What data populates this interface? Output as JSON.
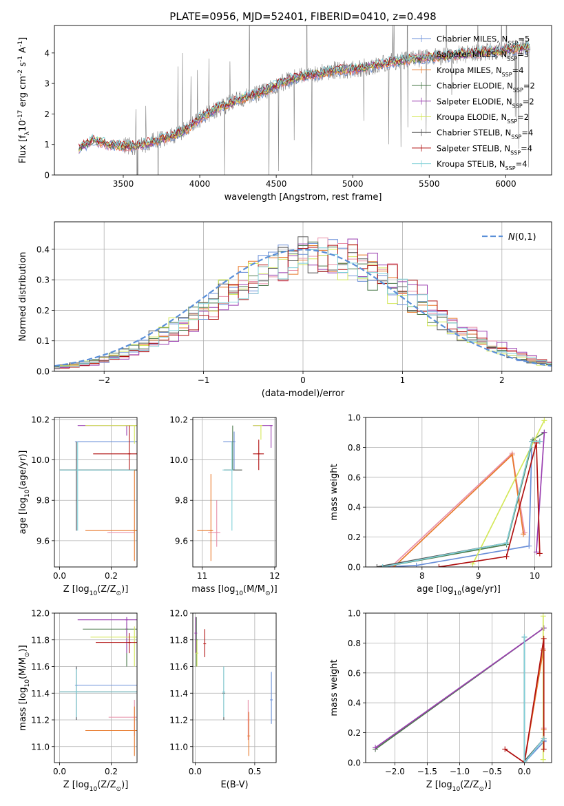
{
  "figure": {
    "title": "PLATE=0956, MJD=52401, FIBERID=0410, z=0.498"
  },
  "series_styles": [
    {
      "label": "Chabrier MILES, N$_{SSP}$=5",
      "color": "#6a8fd8"
    },
    {
      "label": "Salpeter MILES, N$_{SSP}$=3",
      "color": "#e88fa8"
    },
    {
      "label": "Kroupa MILES, N$_{SSP}$=4",
      "color": "#e8792a"
    },
    {
      "label": "Chabrier ELODIE, N$_{SSP}$=2",
      "color": "#4c7a4c"
    },
    {
      "label": "Salpeter ELODIE, N$_{SSP}$=2",
      "color": "#9a3fb0"
    },
    {
      "label": "Kroupa ELODIE, N$_{SSP}$=2",
      "color": "#d4e85a"
    },
    {
      "label": "Chabrier STELIB, N$_{SSP}$=4",
      "color": "#555555"
    },
    {
      "label": "Salpeter STELIB, N$_{SSP}$=4",
      "color": "#b01010"
    },
    {
      "label": "Kroupa STELIB, N$_{SSP}$=4",
      "color": "#80d0d8"
    }
  ],
  "chart_data": [
    {
      "id": "spectrum",
      "type": "line",
      "title": "PLATE=0956, MJD=52401, FIBERID=0410, z=0.498",
      "xlabel": "wavelength [Angstrom, rest frame]",
      "ylabel": "Flux [f$_\\lambda$10$^{-17}$ erg cm$^{-2}$ s$^{-1}$ A$^{-1}$]",
      "xlim": [
        3050,
        6300
      ],
      "ylim": [
        0,
        4.9
      ],
      "xticks": [
        3500,
        4000,
        4500,
        5000,
        5500,
        6000
      ],
      "yticks": [
        0,
        1,
        2,
        3,
        4
      ],
      "grid": false,
      "legend": "top-right",
      "data_color": "#7f7f7f",
      "data_range": [
        3210,
        6160
      ],
      "continuum": {
        "x": [
          3210,
          3300,
          3400,
          3500,
          3600,
          3700,
          3800,
          3900,
          4000,
          4100,
          4200,
          4300,
          4400,
          4500,
          4600,
          4700,
          4800,
          4900,
          5000,
          5100,
          5200,
          5300,
          5400,
          5500,
          5600,
          5700,
          5800,
          5900,
          6000,
          6100,
          6160
        ],
        "y": [
          0.85,
          1.15,
          1.0,
          0.95,
          0.95,
          1.1,
          1.25,
          1.45,
          1.85,
          2.15,
          2.35,
          2.55,
          2.7,
          2.95,
          3.15,
          3.25,
          3.35,
          3.45,
          3.45,
          3.55,
          3.65,
          3.75,
          3.8,
          3.85,
          3.9,
          3.95,
          4.0,
          4.05,
          4.1,
          4.15,
          4.2
        ]
      }
    },
    {
      "id": "residuals",
      "type": "line",
      "xlabel": "(data-model)/error",
      "ylabel": "Normed distribution",
      "xlim": [
        -2.5,
        2.5
      ],
      "ylim": [
        0,
        0.49
      ],
      "xticks": [
        -2,
        -1,
        0,
        1,
        2
      ],
      "yticks": [
        0.0,
        0.1,
        0.2,
        0.3,
        0.4
      ],
      "grid": true,
      "legend": "top-right",
      "legend_entry": "$\\mathcal{N}(0,1)$",
      "gaussian": {
        "mu": 0,
        "sigma": 1,
        "color": "#5a8fd8"
      },
      "bin_width": 0.1
    },
    {
      "id": "age-vs-z",
      "type": "scatter",
      "xlabel": "Z [log$_{10}$(Z/Z$_\\odot$)]",
      "ylabel": "age  [log$_{10}$(age/yr)]",
      "xlim": [
        -0.02,
        0.3
      ],
      "ylim": [
        9.47,
        10.21
      ],
      "xticks": [
        0.0,
        0.2
      ],
      "yticks": [
        9.6,
        9.8,
        10.0,
        10.2
      ],
      "grid": true,
      "points": [
        {
          "s": 0,
          "x": 0.065,
          "y": 9.95,
          "xlo": 0.0,
          "xhi": 0.29,
          "ylo": 9.65,
          "yhi": 10.09
        },
        {
          "s": 0,
          "x": 0.065,
          "y": 10.09,
          "xlo": 0.07,
          "xhi": 0.3,
          "ylo": 10.09,
          "yhi": 10.09
        },
        {
          "s": 1,
          "x": 0.19,
          "y": 9.64,
          "xlo": 0.19,
          "xhi": 0.29,
          "ylo": 9.64,
          "yhi": 9.64
        },
        {
          "s": 2,
          "x": 0.29,
          "y": 9.65,
          "xlo": 0.1,
          "xhi": 0.3,
          "ylo": 9.5,
          "yhi": 9.95
        },
        {
          "s": 3,
          "x": 0.065,
          "y": 9.95,
          "xlo": 0.0,
          "xhi": 0.3,
          "ylo": 9.95,
          "yhi": 9.95
        },
        {
          "s": 4,
          "x": 0.26,
          "y": 10.17,
          "xlo": 0.07,
          "xhi": 0.3,
          "ylo": 10.12,
          "yhi": 10.17
        },
        {
          "s": 5,
          "x": 0.29,
          "y": 10.17,
          "xlo": 0.1,
          "xhi": 0.3,
          "ylo": 10.08,
          "yhi": 10.17
        },
        {
          "s": 6,
          "x": 0.065,
          "y": 9.95,
          "xlo": 0.0,
          "xhi": 0.3,
          "ylo": 9.65,
          "yhi": 10.09
        },
        {
          "s": 7,
          "x": 0.27,
          "y": 10.03,
          "xlo": 0.13,
          "xhi": 0.3,
          "ylo": 9.95,
          "yhi": 10.17
        },
        {
          "s": 8,
          "x": 0.07,
          "y": 9.95,
          "xlo": 0.0,
          "xhi": 0.29,
          "ylo": 9.65,
          "yhi": 10.09
        }
      ]
    },
    {
      "id": "age-vs-mass",
      "type": "scatter",
      "xlabel": "mass [log$_{10}$(M/M$_\\odot$)]",
      "ylabel": "",
      "xlim": [
        10.87,
        12.02
      ],
      "ylim": [
        9.47,
        10.21
      ],
      "xticks": [
        11,
        12
      ],
      "yticks": [
        9.6,
        9.8,
        10.0,
        10.2
      ],
      "grid": true,
      "points": [
        {
          "s": 0,
          "x": 11.44,
          "y": 10.09,
          "xlo": 11.29,
          "xhi": 11.44,
          "ylo": 9.95,
          "yhi": 10.14
        },
        {
          "s": 1,
          "x": 11.2,
          "y": 9.64,
          "xlo": 11.08,
          "xhi": 11.25,
          "ylo": 9.57,
          "yhi": 9.8
        },
        {
          "s": 2,
          "x": 11.12,
          "y": 9.65,
          "xlo": 10.93,
          "xhi": 11.15,
          "ylo": 9.5,
          "yhi": 9.93
        },
        {
          "s": 3,
          "x": 11.42,
          "y": 9.95,
          "xlo": 11.3,
          "xhi": 11.55,
          "ylo": 9.95,
          "yhi": 10.17
        },
        {
          "s": 4,
          "x": 11.95,
          "y": 10.17,
          "xlo": 11.7,
          "xhi": 11.97,
          "ylo": 10.06,
          "yhi": 10.17
        },
        {
          "s": 5,
          "x": 11.81,
          "y": 10.17,
          "xlo": 11.7,
          "xhi": 11.83,
          "ylo": 10.1,
          "yhi": 10.17
        },
        {
          "s": 6,
          "x": 11.41,
          "y": 9.95,
          "xlo": 11.3,
          "xhi": 11.55,
          "ylo": 9.95,
          "yhi": 9.95
        },
        {
          "s": 7,
          "x": 11.78,
          "y": 10.03,
          "xlo": 11.7,
          "xhi": 11.85,
          "ylo": 9.95,
          "yhi": 10.1
        },
        {
          "s": 8,
          "x": 11.41,
          "y": 9.95,
          "xlo": 11.28,
          "xhi": 11.42,
          "ylo": 9.65,
          "yhi": 10.09
        }
      ]
    },
    {
      "id": "weight-vs-age",
      "type": "line",
      "xlabel": "age  [log$_{10}$(age/yr)]",
      "ylabel": "mass weight",
      "xlim": [
        7.0,
        10.3
      ],
      "ylim": [
        0,
        1.0
      ],
      "xticks": [
        8,
        9,
        10
      ],
      "yticks": [
        0.0,
        0.2,
        0.4,
        0.6,
        0.8,
        1.0
      ],
      "grid": true,
      "series": [
        {
          "s": 0,
          "x": [
            7.3,
            7.9,
            9.9,
            9.95,
            10.09
          ],
          "y": [
            0.0,
            0.01,
            0.14,
            0.84,
            0.84
          ]
        },
        {
          "s": 1,
          "x": [
            7.45,
            9.6,
            9.82
          ],
          "y": [
            0.0,
            0.76,
            0.23
          ]
        },
        {
          "s": 2,
          "x": [
            7.5,
            9.6,
            9.8
          ],
          "y": [
            0.0,
            0.75,
            0.22
          ]
        },
        {
          "s": 3,
          "x": [
            7.3,
            9.5,
            9.97,
            10.17
          ],
          "y": [
            0.0,
            0.15,
            0.85,
            0.9
          ]
        },
        {
          "s": 4,
          "x": [
            10.03,
            10.17
          ],
          "y": [
            0.1,
            0.9
          ]
        },
        {
          "s": 5,
          "x": [
            8.9,
            10.17
          ],
          "y": [
            0.02,
            0.98
          ]
        },
        {
          "s": 6,
          "x": [
            7.2,
            9.5,
            9.95,
            10.09
          ],
          "y": [
            0.0,
            0.16,
            0.84,
            0.84
          ]
        },
        {
          "s": 7,
          "x": [
            8.3,
            9.5,
            10.03,
            10.09
          ],
          "y": [
            0.0,
            0.07,
            0.83,
            0.09
          ]
        },
        {
          "s": 8,
          "x": [
            7.3,
            9.5,
            9.95,
            10.09
          ],
          "y": [
            0.0,
            0.16,
            0.84,
            0.84
          ]
        }
      ]
    },
    {
      "id": "mass-vs-z",
      "type": "scatter",
      "xlabel": "Z [log$_{10}$(Z/Z$_\\odot$)]",
      "ylabel": "mass [log$_{10}$(M/M$_\\odot$)]",
      "xlim": [
        -0.02,
        0.3
      ],
      "ylim": [
        10.88,
        12.0
      ],
      "xticks": [
        0.0,
        0.2
      ],
      "yticks": [
        11.0,
        11.2,
        11.4,
        11.6,
        11.8,
        12.0
      ],
      "grid": true,
      "points": [
        {
          "s": 0,
          "x": 0.065,
          "y": 11.46,
          "xlo": 0.065,
          "xhi": 0.3,
          "ylo": 11.2,
          "yhi": 11.6
        },
        {
          "s": 1,
          "x": 0.29,
          "y": 11.22,
          "xlo": 0.19,
          "xhi": 0.3,
          "ylo": 11.08,
          "yhi": 11.35
        },
        {
          "s": 2,
          "x": 0.29,
          "y": 11.12,
          "xlo": 0.1,
          "xhi": 0.3,
          "ylo": 10.93,
          "yhi": 11.3
        },
        {
          "s": 3,
          "x": 0.26,
          "y": 11.88,
          "xlo": 0.09,
          "xhi": 0.3,
          "ylo": 11.6,
          "yhi": 11.93
        },
        {
          "s": 4,
          "x": 0.26,
          "y": 11.95,
          "xlo": 0.07,
          "xhi": 0.3,
          "ylo": 11.7,
          "yhi": 11.97
        },
        {
          "s": 5,
          "x": 0.29,
          "y": 11.82,
          "xlo": 0.12,
          "xhi": 0.3,
          "ylo": 11.6,
          "yhi": 11.9
        },
        {
          "s": 6,
          "x": 0.065,
          "y": 11.41,
          "xlo": 0.0,
          "xhi": 0.3,
          "ylo": 11.2,
          "yhi": 11.6
        },
        {
          "s": 7,
          "x": 0.27,
          "y": 11.78,
          "xlo": 0.14,
          "xhi": 0.3,
          "ylo": 11.7,
          "yhi": 11.85
        },
        {
          "s": 8,
          "x": 0.065,
          "y": 11.41,
          "xlo": 0.0,
          "xhi": 0.3,
          "ylo": 11.22,
          "yhi": 11.58
        }
      ]
    },
    {
      "id": "mass-vs-ebv",
      "type": "scatter",
      "xlabel": "E(B-V)",
      "ylabel": "",
      "xlim": [
        -0.02,
        0.68
      ],
      "ylim": [
        10.88,
        12.0
      ],
      "xticks": [
        0.0,
        0.5
      ],
      "yticks": [
        11.0,
        11.2,
        11.4,
        11.6,
        11.8,
        12.0
      ],
      "grid": true,
      "points": [
        {
          "s": 0,
          "x": 0.64,
          "y": 11.35,
          "ylo": 11.17,
          "yhi": 11.56
        },
        {
          "s": 1,
          "x": 0.445,
          "y": 11.2,
          "ylo": 11.05,
          "yhi": 11.35
        },
        {
          "s": 2,
          "x": 0.45,
          "y": 11.08,
          "ylo": 10.93,
          "yhi": 11.26
        },
        {
          "s": 3,
          "x": 0.01,
          "y": 11.8,
          "ylo": 11.6,
          "yhi": 11.97
        },
        {
          "s": 4,
          "x": 0.005,
          "y": 11.85,
          "ylo": 11.7,
          "yhi": 11.97
        },
        {
          "s": 5,
          "x": 0.015,
          "y": 11.7,
          "ylo": 11.6,
          "yhi": 11.8
        },
        {
          "s": 6,
          "x": 0.24,
          "y": 11.4,
          "ylo": 11.2,
          "yhi": 11.6
        },
        {
          "s": 7,
          "x": 0.08,
          "y": 11.77,
          "ylo": 11.67,
          "yhi": 11.88
        },
        {
          "s": 8,
          "x": 0.24,
          "y": 11.41,
          "ylo": 11.22,
          "yhi": 11.6
        }
      ]
    },
    {
      "id": "weight-vs-z",
      "type": "line",
      "xlabel": "Z [log$_{10}$(Z/Z$_\\odot$)]",
      "ylabel": "mass weight",
      "xlim": [
        -2.45,
        0.42
      ],
      "ylim": [
        0,
        1.0
      ],
      "xticks": [
        -2.0,
        -1.5,
        -1.0,
        -0.5,
        0.0
      ],
      "yticks": [
        0.0,
        0.2,
        0.4,
        0.6,
        0.8,
        1.0
      ],
      "grid": true,
      "series": [
        {
          "s": 0,
          "x": [
            0.0,
            0.0,
            0.3,
            0.3
          ],
          "y": [
            0.84,
            0.0,
            0.14,
            0.15
          ]
        },
        {
          "s": 1,
          "x": [
            0.0,
            0.29,
            0.3
          ],
          "y": [
            0.0,
            0.76,
            0.23
          ]
        },
        {
          "s": 2,
          "x": [
            0.0,
            0.29,
            0.3
          ],
          "y": [
            0.0,
            0.75,
            0.22
          ]
        },
        {
          "s": 3,
          "x": [
            -2.3,
            0.3
          ],
          "y": [
            0.09,
            0.9
          ]
        },
        {
          "s": 4,
          "x": [
            -2.3,
            0.3
          ],
          "y": [
            0.1,
            0.9
          ]
        },
        {
          "s": 5,
          "x": [
            0.29,
            0.29
          ],
          "y": [
            0.02,
            0.98
          ]
        },
        {
          "s": 6,
          "x": [
            0.0,
            0.0,
            0.3
          ],
          "y": [
            0.84,
            0.01,
            0.16
          ]
        },
        {
          "s": 7,
          "x": [
            -0.3,
            0.0,
            0.3,
            0.3
          ],
          "y": [
            0.09,
            0.0,
            0.83,
            0.09
          ]
        },
        {
          "s": 8,
          "x": [
            0.0,
            0.0,
            0.3
          ],
          "y": [
            0.84,
            0.0,
            0.16
          ]
        }
      ]
    }
  ]
}
